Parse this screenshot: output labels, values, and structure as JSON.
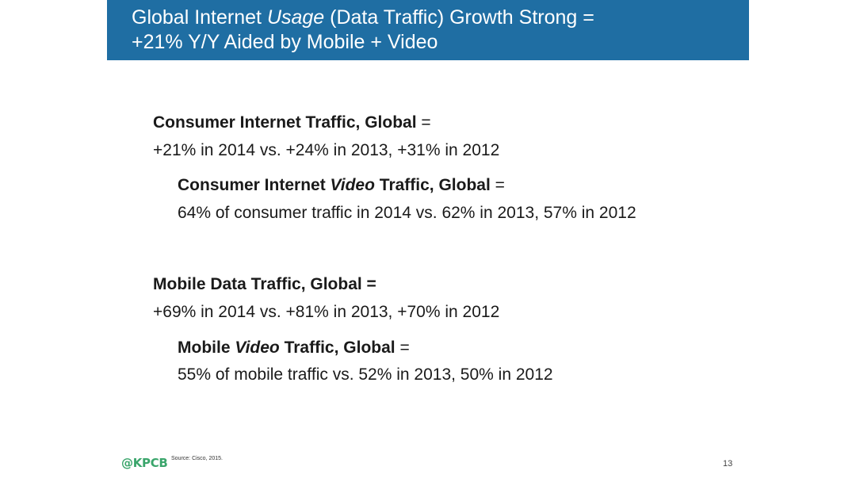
{
  "header": {
    "title_line1_pre": "Global Internet ",
    "title_line1_italic": "Usage",
    "title_line1_post": " (Data Traffic) Growth Strong =",
    "title_line2": "+21% Y/Y Aided by Mobile + Video"
  },
  "sections": {
    "consumer": {
      "heading": "Consumer Internet Traffic, Global",
      "eq": " =",
      "body": "+21% in 2014 vs. +24% in 2013, +31% in 2012"
    },
    "consumer_video": {
      "heading_pre": "Consumer Internet ",
      "heading_italic": "Video",
      "heading_post": " Traffic, Global",
      "eq": " =",
      "body": "64% of consumer traffic in 2014 vs. 62% in 2013, 57% in 2012"
    },
    "mobile": {
      "heading": "Mobile Data Traffic, Global =",
      "body": "+69% in 2014 vs. +81% in 2013, +70% in 2012"
    },
    "mobile_video": {
      "heading_pre": "Mobile ",
      "heading_italic": "Video",
      "heading_post": " Traffic, Global",
      "eq": " =",
      "body": "55% of mobile traffic vs. 52% in 2013, 50% in 2012"
    }
  },
  "footer": {
    "logo": "@KPCB",
    "source": "Source: Cisco, 2015.",
    "page_number": "13"
  },
  "colors": {
    "header_bg": "#1f6ea3",
    "logo": "#3aa56b"
  }
}
